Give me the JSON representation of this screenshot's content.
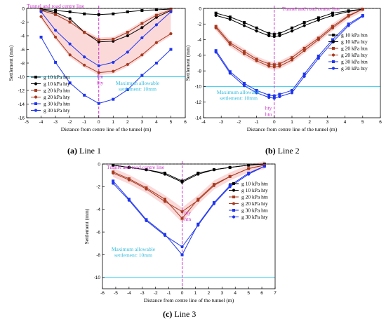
{
  "figure": {
    "captions": [
      {
        "label": "(a)",
        "text": " Line 1"
      },
      {
        "label": "(b)",
        "text": " Line 2"
      },
      {
        "label": "(c)",
        "text": " Line 3"
      }
    ]
  },
  "colors": {
    "black": "#000000",
    "brown": "#a63a1f",
    "blue": "#1f35ee",
    "magenta": "#cc33cc",
    "cyan": "#33ccee",
    "band": "#f7b9b9"
  },
  "chart_data": [
    {
      "type": "line",
      "panel": "a",
      "xlabel": "Distance from centre line of the tunnel (m)",
      "ylabel": "Settlement (mm)",
      "xlim": [
        -5,
        6
      ],
      "ylim": [
        -16,
        0
      ],
      "xticks": [
        -5,
        -4,
        -3,
        -2,
        -1,
        0,
        1,
        2,
        3,
        4,
        5,
        6
      ],
      "yticks": [
        -16,
        -14,
        -12,
        -10,
        -8,
        -6,
        -4,
        -2,
        0
      ],
      "centre_line_label": "Tunnel and road centre line",
      "threshold": {
        "value": -10,
        "label_lines": [
          "Maximum allowable",
          "settlement: 10mm"
        ]
      },
      "point_labels": [
        "htn",
        "hty"
      ],
      "series": [
        {
          "name": "g 10 kPa htn",
          "marker": "square",
          "color": "black",
          "x": [
            -4,
            -3,
            -2,
            -1,
            0,
            1,
            2,
            3,
            4,
            5
          ],
          "y": [
            -0.1,
            -0.3,
            -0.5,
            -0.8,
            -0.9,
            -0.8,
            -0.5,
            -0.3,
            -0.2,
            -0.1
          ]
        },
        {
          "name": "g 10 kPa hty",
          "marker": "circle",
          "color": "black",
          "x": [
            -4,
            -3,
            -2,
            -1,
            0,
            1,
            2,
            3,
            4,
            5
          ],
          "y": [
            -0.2,
            -0.6,
            -1.5,
            -3.5,
            -4.9,
            -4.8,
            -4.0,
            -2.8,
            -1.3,
            -0.3
          ]
        },
        {
          "name": "g 20 kPa htn",
          "marker": "square",
          "color": "brown",
          "x": [
            -4,
            -3,
            -2,
            -1,
            0,
            1,
            2,
            3,
            4,
            5
          ],
          "y": [
            -0.3,
            -0.9,
            -2.0,
            -3.5,
            -4.6,
            -4.5,
            -3.5,
            -2.2,
            -1.0,
            -0.2
          ]
        },
        {
          "name": "g 20 kPa hty",
          "marker": "circle",
          "color": "brown",
          "x": [
            -4,
            -3,
            -2,
            -1,
            0,
            1,
            2,
            3,
            4,
            5
          ],
          "y": [
            -1.2,
            -4.2,
            -6.8,
            -8.3,
            -9.4,
            -9.2,
            -8.2,
            -6.8,
            -5.0,
            -3.7
          ]
        },
        {
          "name": "g 30 kPa htn",
          "marker": "square",
          "color": "blue",
          "x": [
            -4,
            -3,
            -2,
            -1,
            0,
            1,
            2,
            3,
            4,
            5
          ],
          "y": [
            -4.2,
            -7.9,
            -10.9,
            -12.7,
            -13.9,
            -13.3,
            -11.9,
            -9.8,
            -8.0,
            -6.0
          ]
        },
        {
          "name": "g 30 kPa hty",
          "marker": "circle",
          "color": "blue",
          "x": [
            -4,
            -3,
            -2,
            -1,
            0,
            1,
            2,
            3,
            4,
            5
          ],
          "y": [
            -0.5,
            -3.2,
            -5.2,
            -7.1,
            -8.4,
            -7.9,
            -6.4,
            -4.3,
            -2.4,
            -0.5
          ]
        }
      ]
    },
    {
      "type": "line",
      "panel": "b",
      "xlabel": "Distance from centre line of the tunnel (m)",
      "ylabel": "Settlement (mm)",
      "xlim": [
        -4,
        6
      ],
      "ylim": [
        -14,
        0
      ],
      "xticks": [
        -4,
        -3,
        -2,
        -1,
        0,
        1,
        2,
        3,
        4,
        5,
        6
      ],
      "yticks": [
        -14,
        -12,
        -10,
        -8,
        -6,
        -4,
        -2,
        0
      ],
      "centre_line_label": "Tunnel and road centre line",
      "threshold": {
        "value": -10,
        "label_lines": [
          "Maximum allowable",
          "settlement: 10mm"
        ]
      },
      "point_labels": [
        "hty",
        "htn"
      ],
      "series": [
        {
          "name": "g 10 kPa htn",
          "marker": "square",
          "color": "black",
          "x": [
            -3.3,
            -2.5,
            -1.7,
            -1,
            -0.3,
            0,
            0.3,
            1,
            1.7,
            2.5,
            3.3,
            4.2,
            5
          ],
          "y": [
            -0.6,
            -1.1,
            -1.8,
            -2.5,
            -3.2,
            -3.3,
            -3.2,
            -2.5,
            -1.8,
            -1.2,
            -0.6,
            -0.3,
            -0.1
          ]
        },
        {
          "name": "g 10 kPa hty",
          "marker": "circle",
          "color": "black",
          "x": [
            -3.3,
            -2.5,
            -1.7,
            -1,
            -0.3,
            0,
            0.3,
            1,
            1.7,
            2.5,
            3.3,
            4.2,
            5
          ],
          "y": [
            -0.9,
            -1.4,
            -2.2,
            -2.9,
            -3.5,
            -3.6,
            -3.5,
            -2.9,
            -2.2,
            -1.5,
            -0.9,
            -0.4,
            -0.1
          ]
        },
        {
          "name": "g 20 kPa htn",
          "marker": "square",
          "color": "brown",
          "x": [
            -3.3,
            -2.5,
            -1.7,
            -1,
            -0.3,
            0,
            0.3,
            1,
            1.7,
            2.5,
            3.3,
            4.2,
            5
          ],
          "y": [
            -2.3,
            -4.4,
            -5.5,
            -6.5,
            -7.1,
            -7.2,
            -7.1,
            -6.3,
            -5.1,
            -3.8,
            -2.3,
            -0.9,
            -0.1
          ]
        },
        {
          "name": "g 20 kPa hty",
          "marker": "circle",
          "color": "brown",
          "x": [
            -3.3,
            -2.5,
            -1.7,
            -1,
            -0.3,
            0,
            0.3,
            1,
            1.7,
            2.5,
            3.3,
            4.2,
            5
          ],
          "y": [
            -2.5,
            -4.6,
            -5.8,
            -6.7,
            -7.4,
            -7.5,
            -7.4,
            -6.6,
            -5.4,
            -4.0,
            -2.5,
            -1.0,
            -0.1
          ]
        },
        {
          "name": "g 30 kPa htn",
          "marker": "square",
          "color": "blue",
          "x": [
            -3.3,
            -2.5,
            -1.7,
            -1,
            -0.3,
            0,
            0.3,
            1,
            1.7,
            2.5,
            3.3,
            4.2,
            5
          ],
          "y": [
            -5.4,
            -8.1,
            -9.6,
            -10.5,
            -11.1,
            -11.2,
            -11.0,
            -10.5,
            -8.4,
            -6.1,
            -4.0,
            -2.0,
            -0.9
          ]
        },
        {
          "name": "g 30 kPa hty",
          "marker": "circle",
          "color": "blue",
          "x": [
            -3.3,
            -2.5,
            -1.7,
            -1,
            -0.3,
            0,
            0.3,
            1,
            1.7,
            2.5,
            3.3,
            4.2,
            5
          ],
          "y": [
            -5.6,
            -8.3,
            -9.9,
            -10.8,
            -11.4,
            -11.5,
            -11.3,
            -10.8,
            -8.7,
            -6.4,
            -4.3,
            -2.2,
            -1.0
          ]
        }
      ]
    },
    {
      "type": "line",
      "panel": "c",
      "xlabel": "Distance from centre line of the tunnel (m)",
      "ylabel": "Settlement (mm)",
      "xlim": [
        -6,
        7
      ],
      "ylim": [
        -11,
        0
      ],
      "xticks": [
        -6,
        -5,
        -4,
        -3,
        -2,
        -1,
        0,
        1,
        2,
        3,
        4,
        5,
        6,
        7
      ],
      "yticks": [
        -10,
        -8,
        -6,
        -4,
        -2,
        0
      ],
      "centre_line_label": "Tunnel and road centre line",
      "threshold": {
        "value": -10,
        "label_lines": [
          "Maximum allowable",
          "settlement: 10mm"
        ]
      },
      "point_labels": [
        "hty",
        "htn"
      ],
      "series": [
        {
          "name": "g 10 kPa htn",
          "marker": "square",
          "color": "black",
          "x": [
            -5.2,
            -4,
            -2.7,
            -1.3,
            0,
            1.2,
            2.4,
            3.6,
            5,
            6.2
          ],
          "y": [
            -0.1,
            -0.3,
            -0.5,
            -0.8,
            -1.5,
            -0.8,
            -0.5,
            -0.3,
            -0.1,
            0
          ]
        },
        {
          "name": "g 10 kPa hty",
          "marker": "circle",
          "color": "black",
          "x": [
            -5.2,
            -4,
            -2.7,
            -1.3,
            0,
            1.2,
            2.4,
            3.6,
            5,
            6.2
          ],
          "y": [
            -0.1,
            -0.3,
            -0.5,
            -0.9,
            -1.6,
            -0.9,
            -0.5,
            -0.3,
            -0.1,
            0
          ]
        },
        {
          "name": "g 20 kPa htn",
          "marker": "square",
          "color": "brown",
          "x": [
            -5.2,
            -4,
            -2.7,
            -1.3,
            0,
            1.2,
            2.4,
            3.6,
            5,
            6.2
          ],
          "y": [
            -0.7,
            -1.3,
            -2.1,
            -3.1,
            -4.8,
            -3.1,
            -1.8,
            -1.1,
            -0.4,
            -0.1
          ]
        },
        {
          "name": "g 20 kPa hty",
          "marker": "circle",
          "color": "brown",
          "x": [
            -5.2,
            -4,
            -2.7,
            -1.3,
            0,
            1.2,
            2.4,
            3.6,
            5,
            6.2
          ],
          "y": [
            -0.8,
            -1.4,
            -2.2,
            -3.3,
            -4.2,
            -3.2,
            -1.9,
            -1.1,
            -0.4,
            -0.1
          ]
        },
        {
          "name": "g 30 kPa htn",
          "marker": "square",
          "color": "blue",
          "x": [
            -5.2,
            -4,
            -2.7,
            -1.3,
            0,
            1.2,
            2.4,
            3.6,
            5,
            6.2
          ],
          "y": [
            -1.5,
            -3.1,
            -4.9,
            -6.2,
            -8.0,
            -5.3,
            -3.4,
            -1.9,
            -0.8,
            -0.2
          ]
        },
        {
          "name": "g 30 kPa hty",
          "marker": "circle",
          "color": "blue",
          "x": [
            -5.2,
            -4,
            -2.7,
            -1.3,
            0,
            1.2,
            2.4,
            3.6,
            5,
            6.2
          ],
          "y": [
            -1.7,
            -3.2,
            -5.0,
            -6.3,
            -7.3,
            -5.4,
            -3.5,
            -2.0,
            -0.9,
            -0.2
          ]
        }
      ]
    }
  ]
}
